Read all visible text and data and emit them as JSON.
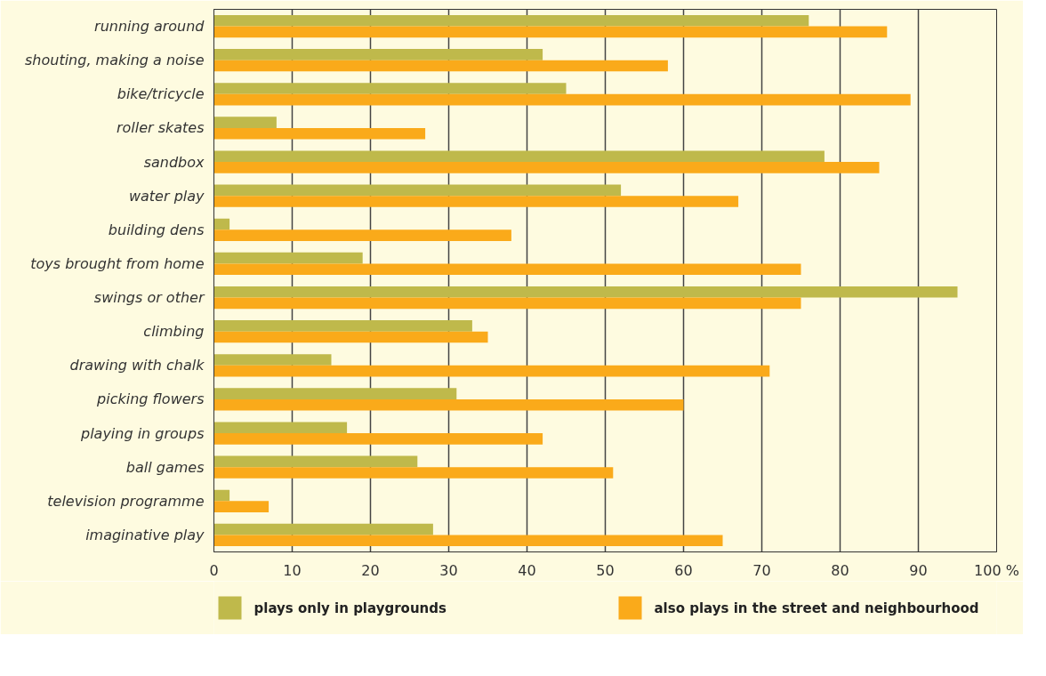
{
  "chart_data": {
    "type": "bar",
    "orientation": "horizontal",
    "categories": [
      "running around",
      "shouting, making a noise",
      "bike/tricycle",
      "roller skates",
      "sandbox",
      "water play",
      "building dens",
      "toys brought from home",
      "swings or other",
      "climbing",
      "drawing with chalk",
      "picking flowers",
      "playing in groups",
      "ball games",
      "television programme",
      "imaginative play"
    ],
    "series": [
      {
        "name": "plays only in playgrounds",
        "color": "#bfb94b",
        "values": [
          76,
          42,
          45,
          8,
          78,
          52,
          2,
          19,
          95,
          33,
          15,
          31,
          17,
          26,
          2,
          28
        ]
      },
      {
        "name": "also plays in the street and neighbourhood",
        "color": "#faaa1a",
        "values": [
          86,
          58,
          89,
          27,
          85,
          67,
          38,
          75,
          75,
          35,
          71,
          60,
          42,
          51,
          7,
          65
        ]
      }
    ],
    "xlim": [
      0,
      100
    ],
    "xticks": [
      0,
      10,
      20,
      30,
      40,
      50,
      60,
      70,
      80,
      90,
      {
        "value": 100,
        "label": "100 %"
      }
    ],
    "grid": "x",
    "legend": "bottom"
  }
}
